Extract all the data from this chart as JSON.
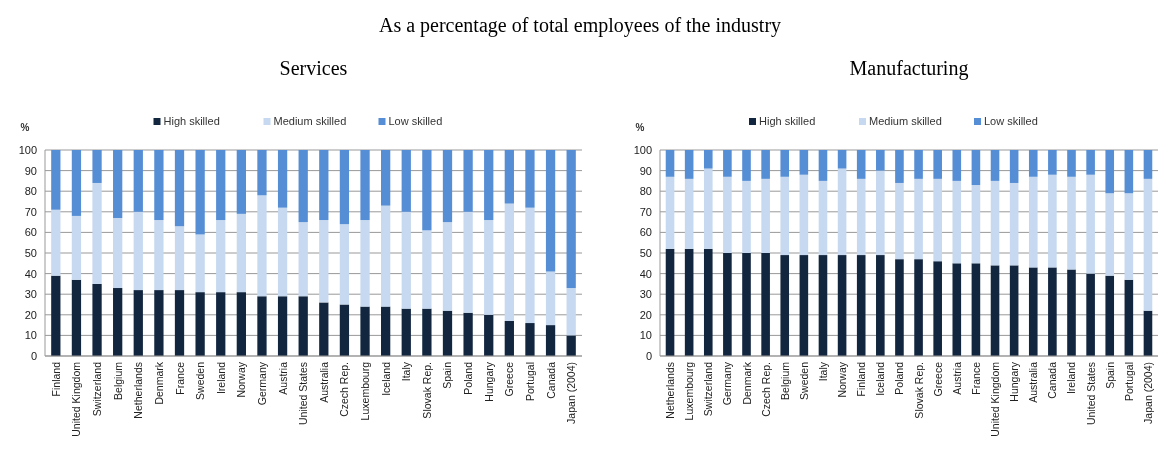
{
  "chart_data": [
    {
      "type": "bar",
      "title": "Services",
      "annotations": [
        "As a percentage of total employees of the industry"
      ],
      "ylabel": "%",
      "stacked": true,
      "legend": "top",
      "grid": "y",
      "ylim": [
        0,
        100
      ],
      "yticks": [
        0,
        10,
        20,
        30,
        40,
        50,
        60,
        70,
        80,
        90,
        100
      ],
      "categories": [
        "Finland",
        "United Kingdom",
        "Switzerland",
        "Belgium",
        "Netherlands",
        "Denmark",
        "France",
        "Sweden",
        "Ireland",
        "Norway",
        "Germany",
        "Austria",
        "United States",
        "Australia",
        "Czech Rep.",
        "Luxembourg",
        "Iceland",
        "Italy",
        "Slovak Rep.",
        "Spain",
        "Poland",
        "Hungary",
        "Greece",
        "Portugal",
        "Canada",
        "Japan (2004)"
      ],
      "series": [
        {
          "name": "High skilled",
          "color": "#12263f",
          "values": [
            39,
            37,
            35,
            33,
            32,
            32,
            32,
            31,
            31,
            31,
            29,
            29,
            29,
            26,
            25,
            24,
            24,
            23,
            23,
            22,
            21,
            20,
            17,
            16,
            15,
            10
          ]
        },
        {
          "name": "Medium skilled",
          "color": "#c6d9f0",
          "values": [
            32,
            31,
            49,
            34,
            38,
            34,
            31,
            28,
            35,
            38,
            49,
            43,
            36,
            40,
            39,
            42,
            49,
            47,
            38,
            43,
            49,
            46,
            57,
            56,
            26,
            23
          ]
        },
        {
          "name": "Low skilled",
          "color": "#558ed5",
          "values": [
            29,
            32,
            16,
            33,
            30,
            34,
            37,
            41,
            34,
            31,
            22,
            28,
            35,
            34,
            36,
            34,
            27,
            30,
            39,
            35,
            30,
            34,
            26,
            28,
            59,
            67
          ]
        }
      ]
    },
    {
      "type": "bar",
      "title": "Manufacturing",
      "ylabel": "%",
      "stacked": true,
      "legend": "top",
      "grid": "y",
      "ylim": [
        0,
        100
      ],
      "yticks": [
        0,
        10,
        20,
        30,
        40,
        50,
        60,
        70,
        80,
        90,
        100
      ],
      "categories": [
        "Netherlands",
        "Luxembourg",
        "Switzerland",
        "Germany",
        "Denmark",
        "Czech Rep.",
        "Belgium",
        "Sweden",
        "Italy",
        "Norway",
        "Finland",
        "Iceland",
        "Poland",
        "Slovak Rep.",
        "Greece",
        "Austria",
        "France",
        "United Kingdom",
        "Hungary",
        "Australia",
        "Canada",
        "Ireland",
        "United States",
        "Spain",
        "Portugal",
        "Japan (2004)"
      ],
      "series": [
        {
          "name": "High skilled",
          "color": "#12263f",
          "values": [
            52,
            52,
            52,
            50,
            50,
            50,
            49,
            49,
            49,
            49,
            49,
            49,
            47,
            47,
            46,
            45,
            45,
            44,
            44,
            43,
            43,
            42,
            40,
            39,
            37,
            22
          ]
        },
        {
          "name": "Medium skilled",
          "color": "#c6d9f0",
          "values": [
            35,
            34,
            39,
            37,
            35,
            36,
            38,
            39,
            36,
            42,
            37,
            41,
            37,
            39,
            40,
            40,
            38,
            41,
            40,
            44,
            45,
            45,
            48,
            40,
            42,
            64
          ]
        },
        {
          "name": "Low skilled",
          "color": "#558ed5",
          "values": [
            13,
            14,
            9,
            13,
            15,
            14,
            13,
            12,
            15,
            9,
            14,
            10,
            16,
            14,
            14,
            15,
            17,
            15,
            16,
            13,
            12,
            13,
            12,
            21,
            21,
            14
          ]
        }
      ]
    }
  ]
}
